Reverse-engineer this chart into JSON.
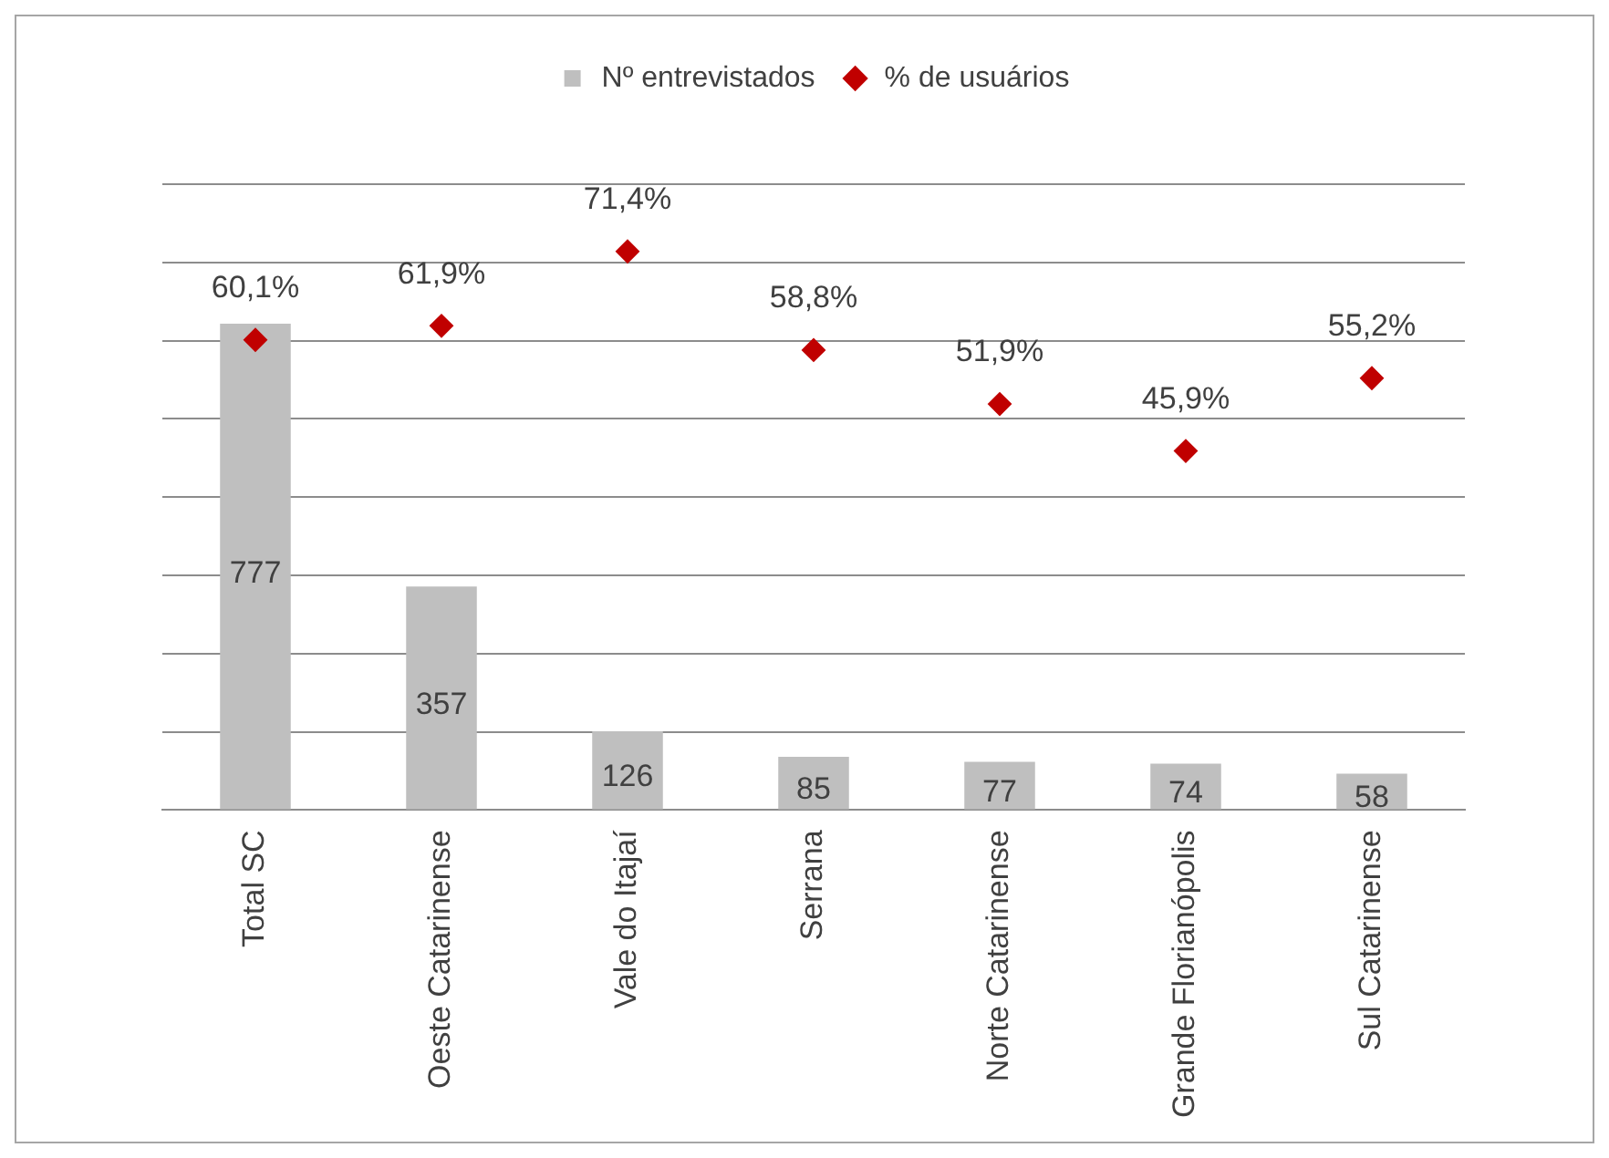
{
  "chart_data": {
    "type": "bar",
    "categories": [
      "Total SC",
      "Oeste Catarinense",
      "Vale do Itajaí",
      "Serrana",
      "Norte Catarinense",
      "Grande Florianópolis",
      "Sul Catarinense"
    ],
    "series": [
      {
        "name": "Nº entrevistados",
        "color": "#bfbfbf",
        "values": [
          777,
          357,
          126,
          85,
          77,
          74,
          58
        ],
        "value_labels": [
          "777",
          "357",
          "126",
          "85",
          "77",
          "74",
          "58"
        ]
      },
      {
        "name": "% de usuários",
        "type": "scatter",
        "axis": "y2",
        "marker": "diamond",
        "color": "#c00000",
        "values": [
          60.1,
          61.9,
          71.4,
          58.8,
          51.9,
          45.9,
          55.2
        ],
        "value_labels": [
          "60,1%",
          "61,9%",
          "71,4%",
          "58,8%",
          "51,9%",
          "45,9%",
          "55,2%"
        ]
      }
    ],
    "ylim": [
      0,
      1000
    ],
    "yticks": [
      {
        "value": 0,
        "label": null
      },
      {
        "value": 125,
        "label": null
      },
      {
        "value": 250,
        "label": null
      },
      {
        "value": 375,
        "label": null
      },
      {
        "value": 500,
        "label": null
      },
      {
        "value": 625,
        "label": null
      },
      {
        "value": 750,
        "label": null
      },
      {
        "value": 875,
        "label": null
      },
      {
        "value": 1000,
        "label": null
      }
    ],
    "y2lim": [
      0,
      80
    ],
    "grid": "y",
    "legend": "top",
    "tick_labels": "x"
  }
}
